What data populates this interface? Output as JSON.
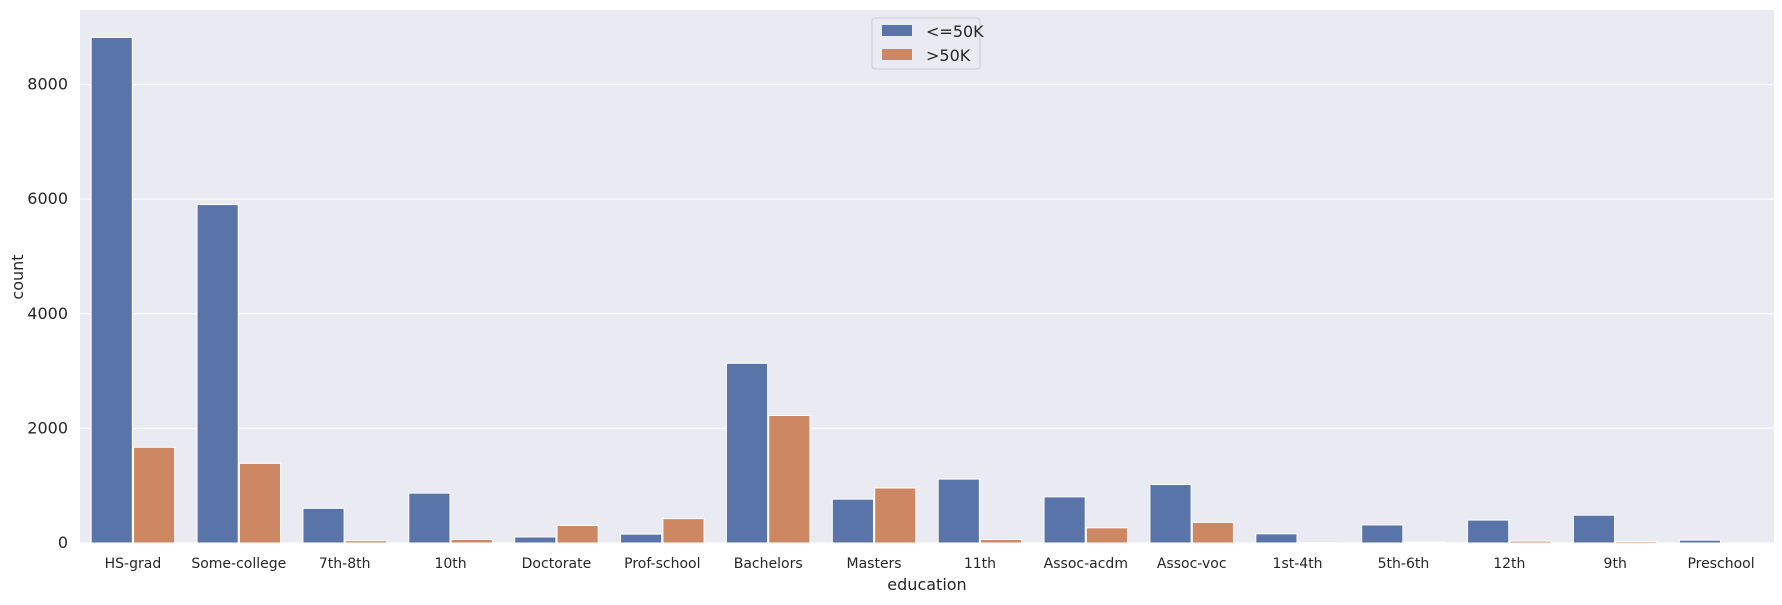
{
  "chart_data": {
    "type": "bar",
    "xlabel": "education",
    "ylabel": "count",
    "ylim": [
      0,
      9300
    ],
    "yticks": [
      0,
      2000,
      4000,
      6000,
      8000
    ],
    "grid": true,
    "legend_position": "top-center",
    "categories": [
      "HS-grad",
      "Some-college",
      "7th-8th",
      "10th",
      "Doctorate",
      "Prof-school",
      "Bachelors",
      "Masters",
      "11th",
      "Assoc-acdm",
      "Assoc-voc",
      "1st-4th",
      "5th-6th",
      "12th",
      "9th",
      "Preschool"
    ],
    "series": [
      {
        "name": "<=50K",
        "color": "#5874a8",
        "values": [
          8820,
          5905,
          605,
          870,
          105,
          155,
          3135,
          765,
          1115,
          805,
          1020,
          160,
          315,
          400,
          485,
          50
        ]
      },
      {
        "name": ">50K",
        "color": "#cd8863",
        "values": [
          1670,
          1390,
          40,
          62,
          305,
          425,
          2225,
          960,
          60,
          265,
          360,
          6,
          16,
          33,
          27,
          0
        ]
      }
    ]
  }
}
